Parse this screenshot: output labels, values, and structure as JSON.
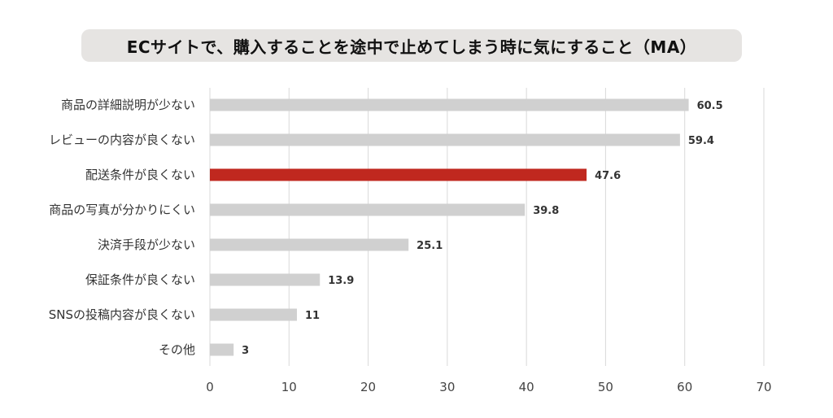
{
  "title": "ECサイトで、購入することを途中で止めてしまう時に気にすること（MA）",
  "colors": {
    "bar": "#d0d0d0",
    "highlight": "#c0281f",
    "grid": "#d9d9d9",
    "title_bg": "#e6e4e2"
  },
  "chart_data": {
    "type": "bar",
    "orientation": "horizontal",
    "title": "ECサイトで、購入することを途中で止めてしまう時に気にすること（MA）",
    "categories": [
      "商品の詳細説明が少ない",
      "レビューの内容が良くない",
      "配送条件が良くない",
      "商品の写真が分かりにくい",
      "決済手段が少ない",
      "保証条件が良くない",
      "SNSの投稿内容が良くない",
      "その他"
    ],
    "values": [
      60.5,
      59.4,
      47.6,
      39.8,
      25.1,
      13.9,
      11,
      3
    ],
    "value_labels": [
      "60.5",
      "59.4",
      "47.6",
      "39.8",
      "25.1",
      "13.9",
      "11",
      "3"
    ],
    "highlight_index": 2,
    "xlim": [
      0,
      70
    ],
    "xticks": [
      "0",
      "10",
      "20",
      "30",
      "40",
      "50",
      "60",
      "70"
    ],
    "grid": true,
    "legend": "none"
  }
}
